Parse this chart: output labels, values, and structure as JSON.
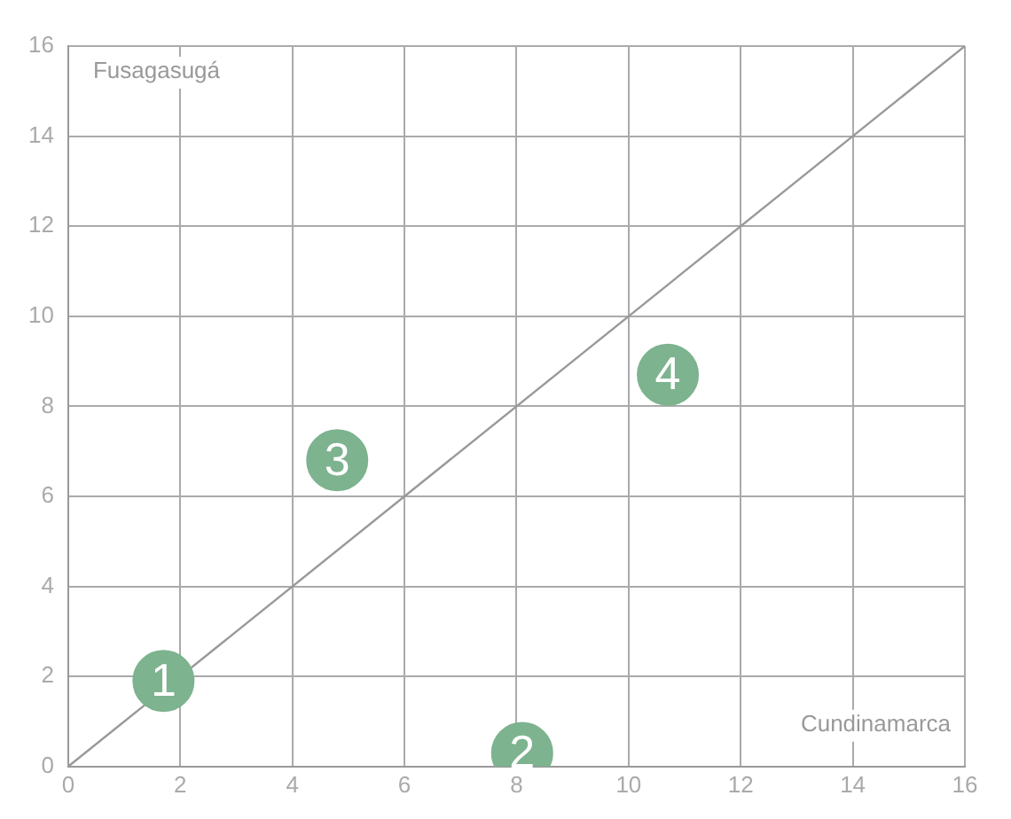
{
  "chart_data": {
    "type": "scatter",
    "xlabel": "Cundinamarca",
    "ylabel": "Fusagasugá",
    "series": [
      {
        "color": "#7db38f",
        "x": [
          1.7,
          8.1,
          4.8,
          10.7
        ],
        "values": [
          1.9,
          0.3,
          6.8,
          8.7
        ]
      },
      {
        "type": "line",
        "marker": "none",
        "color": "#999999",
        "x": [
          0,
          16
        ],
        "values": [
          0,
          16
        ]
      }
    ],
    "annotations": [
      {
        "text": "1",
        "x": 1.7,
        "y": 1.9
      },
      {
        "text": "2",
        "x": 8.1,
        "y": 0.3
      },
      {
        "text": "3",
        "x": 4.8,
        "y": 6.8
      },
      {
        "text": "4",
        "x": 10.7,
        "y": 8.7
      }
    ],
    "xlim": [
      0,
      16
    ],
    "ylim": [
      0,
      16
    ],
    "xticks": [
      0,
      2,
      4,
      6,
      8,
      10,
      12,
      14,
      16
    ],
    "yticks": [
      0,
      2,
      4,
      6,
      8,
      10,
      12,
      14,
      16
    ],
    "grid": true,
    "legend": false,
    "marker": "circle"
  }
}
